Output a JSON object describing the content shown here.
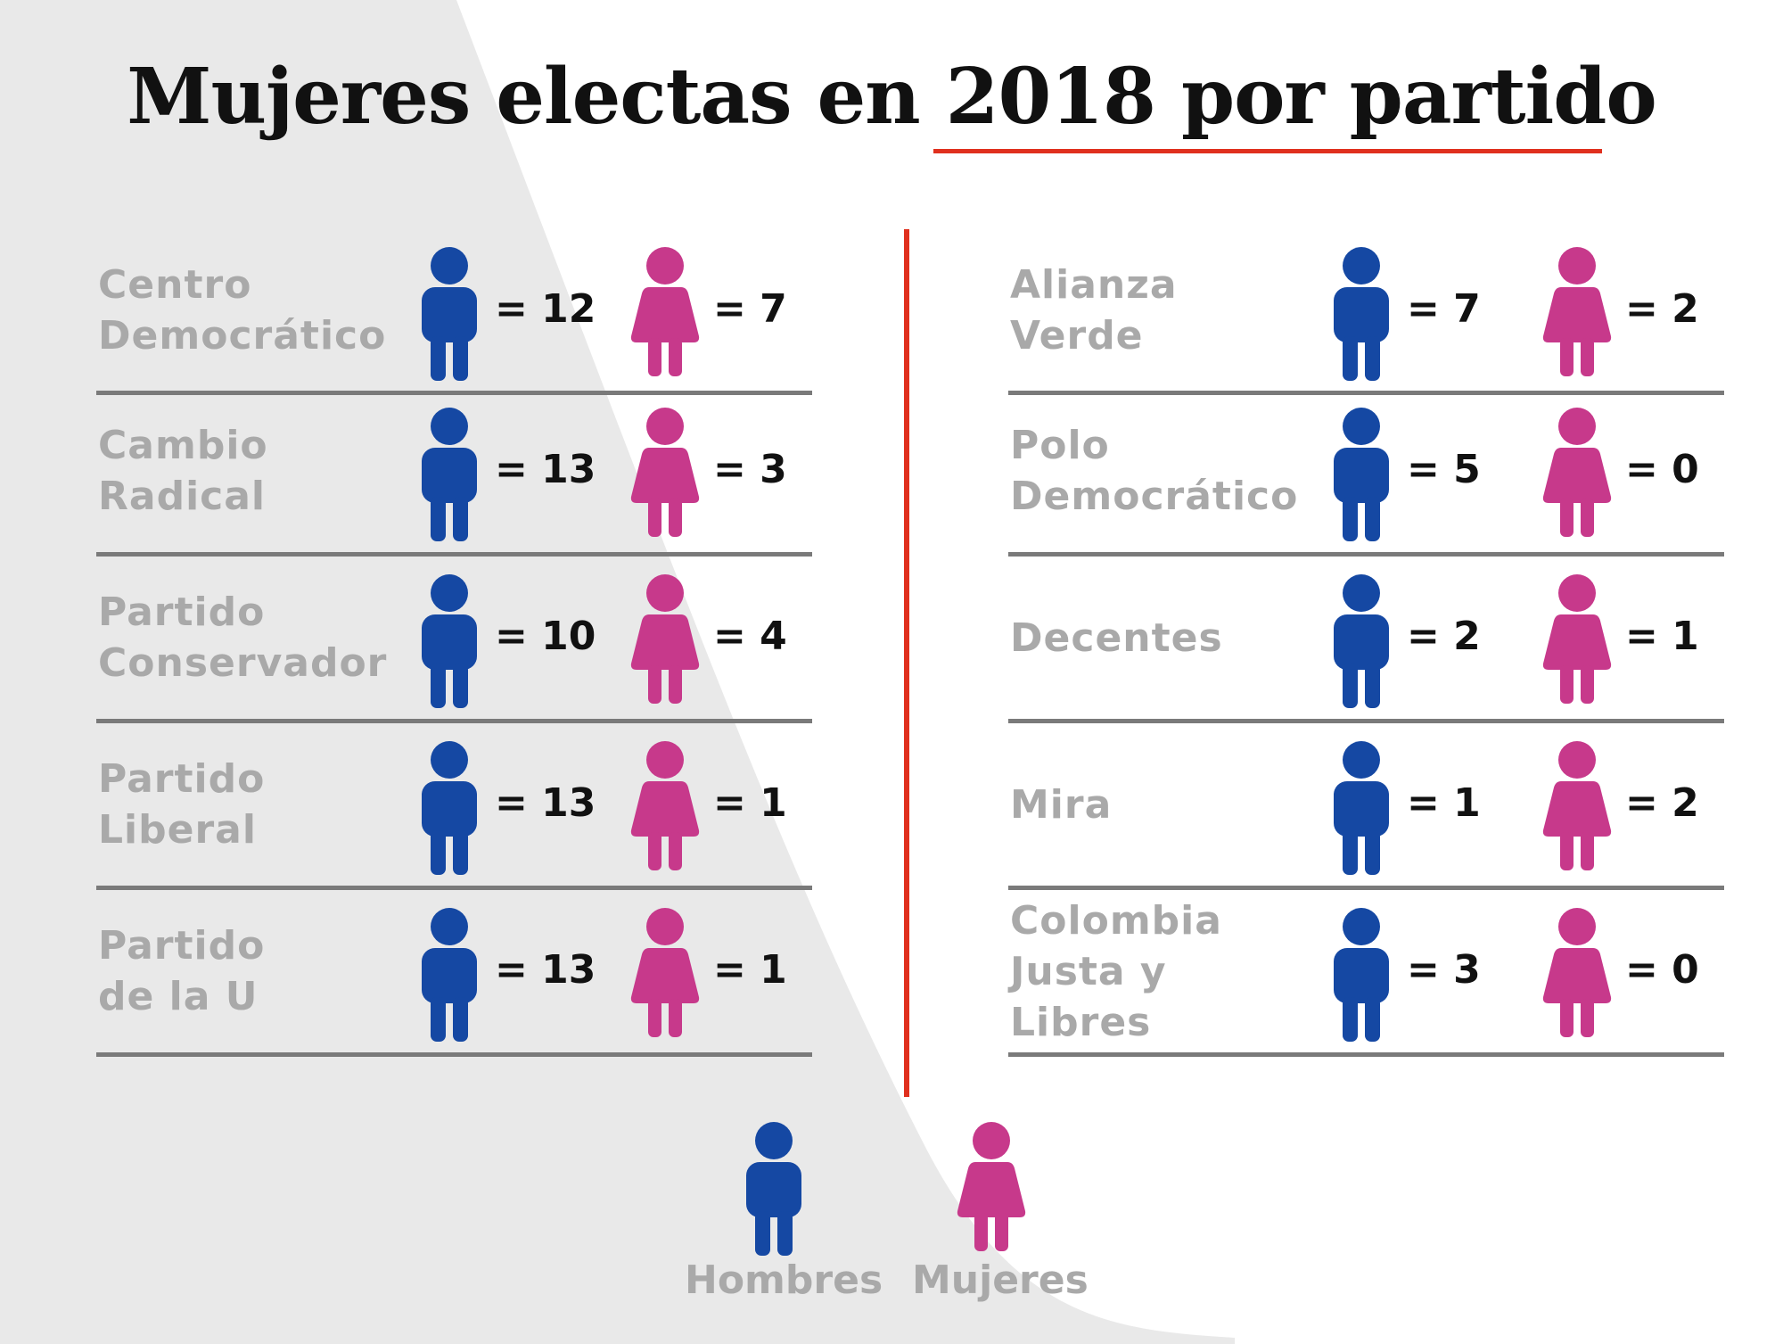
{
  "title": "Mujeres electas en 2018 por partido",
  "colors": {
    "men": "#1548a3",
    "women": "#c7398b",
    "accent": "#e0301e",
    "rule": "#7a7a7a",
    "party_label": "#a9a9a9"
  },
  "icons": {
    "men": "man-icon",
    "women": "woman-icon"
  },
  "left_parties": [
    {
      "name": "Centro\nDemocrático",
      "men": "= 12",
      "women": "= 7"
    },
    {
      "name": "Cambio\nRadical",
      "men": "= 13",
      "women": "= 3"
    },
    {
      "name": "Partido\nConservador",
      "men": "= 10",
      "women": "= 4"
    },
    {
      "name": "Partido\nLiberal",
      "men": "= 13",
      "women": "= 1"
    },
    {
      "name": "Partido\nde la U",
      "men": "= 13",
      "women": "= 1"
    }
  ],
  "right_parties": [
    {
      "name": "Alianza\nVerde",
      "men": "= 7",
      "women": "= 2"
    },
    {
      "name": "Polo\nDemocrático",
      "men": "= 5",
      "women": "= 0"
    },
    {
      "name": "Decentes",
      "men": "= 2",
      "women": "= 1"
    },
    {
      "name": "Mira",
      "men": "= 1",
      "women": "= 2"
    },
    {
      "name": "Colombia\nJusta y Libres",
      "men": "= 3",
      "women": "= 0"
    }
  ],
  "legend": {
    "men": "Hombres",
    "women": "Mujeres"
  }
}
